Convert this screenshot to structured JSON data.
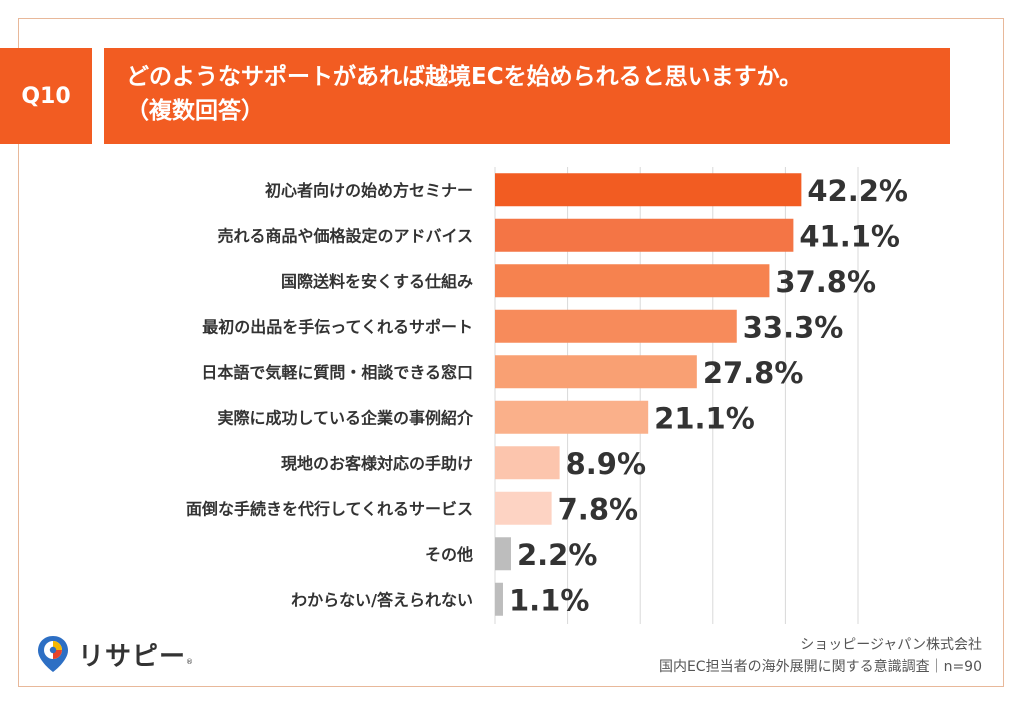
{
  "header": {
    "question_no": "Q10",
    "title_line1": "どのようなサポートがあれば越境ECを始められると思いますか。",
    "title_line2": "（複数回答）"
  },
  "chart_data": {
    "type": "bar",
    "orientation": "horizontal",
    "categories": [
      "初心者向けの始め方セミナー",
      "売れる商品や価格設定のアドバイス",
      "国際送料を安くする仕組み",
      "最初の出品を手伝ってくれるサポート",
      "日本語で気軽に質問・相談できる窓口",
      "実際に成功している企業の事例紹介",
      "現地のお客様対応の手助け",
      "面倒な手続きを代行してくれるサービス",
      "その他",
      "わからない/答えられない"
    ],
    "values": [
      42.2,
      41.1,
      37.8,
      33.3,
      27.8,
      21.1,
      8.9,
      7.8,
      2.2,
      1.1
    ],
    "value_labels": [
      "42.2%",
      "41.1%",
      "37.8%",
      "33.3%",
      "27.8%",
      "21.1%",
      "8.9%",
      "7.8%",
      "2.2%",
      "1.1%"
    ],
    "bar_colors": [
      "#f25c22",
      "#f47545",
      "#f6824f",
      "#f78b5b",
      "#f9a073",
      "#fab08a",
      "#fcc5ad",
      "#fdd3c3",
      "#bdbdbd",
      "#bdbdbd"
    ],
    "xlim": [
      0,
      50
    ],
    "grid": true
  },
  "logo": {
    "text": "リサピー",
    "registered": "®"
  },
  "source": {
    "line1": "ショッピージャパン株式会社",
    "line2": "国内EC担当者の海外展開に関する意識調査｜n=90"
  }
}
